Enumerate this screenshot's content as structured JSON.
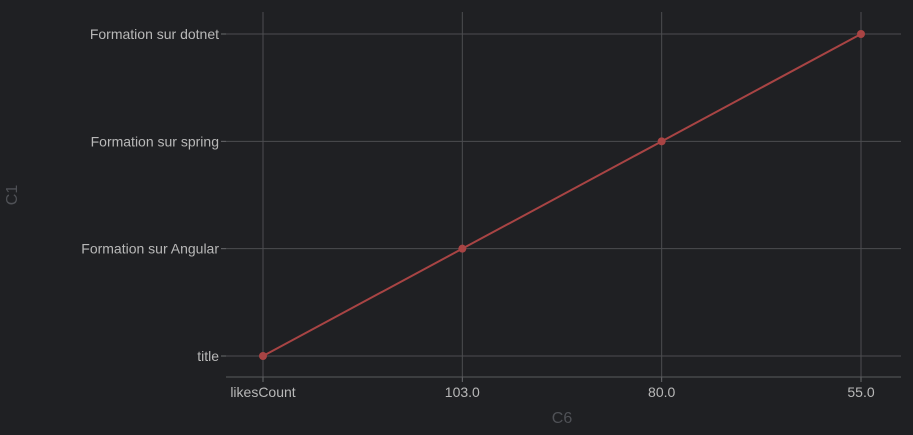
{
  "chart_data": {
    "type": "line",
    "categories": [
      "likesCount",
      "103.0",
      "80.0",
      "55.0"
    ],
    "y_categories": [
      "title",
      "Formation sur Angular",
      "Formation sur spring",
      "Formation sur dotnet"
    ],
    "series": [
      {
        "x": [
          "likesCount",
          "103.0",
          "80.0",
          "55.0"
        ],
        "y": [
          "title",
          "Formation sur Angular",
          "Formation sur spring",
          "Formation sur dotnet"
        ],
        "color": "#a84444"
      }
    ],
    "xlabel": "C6",
    "ylabel": "C1",
    "grid": true,
    "background": "#1f2023"
  }
}
